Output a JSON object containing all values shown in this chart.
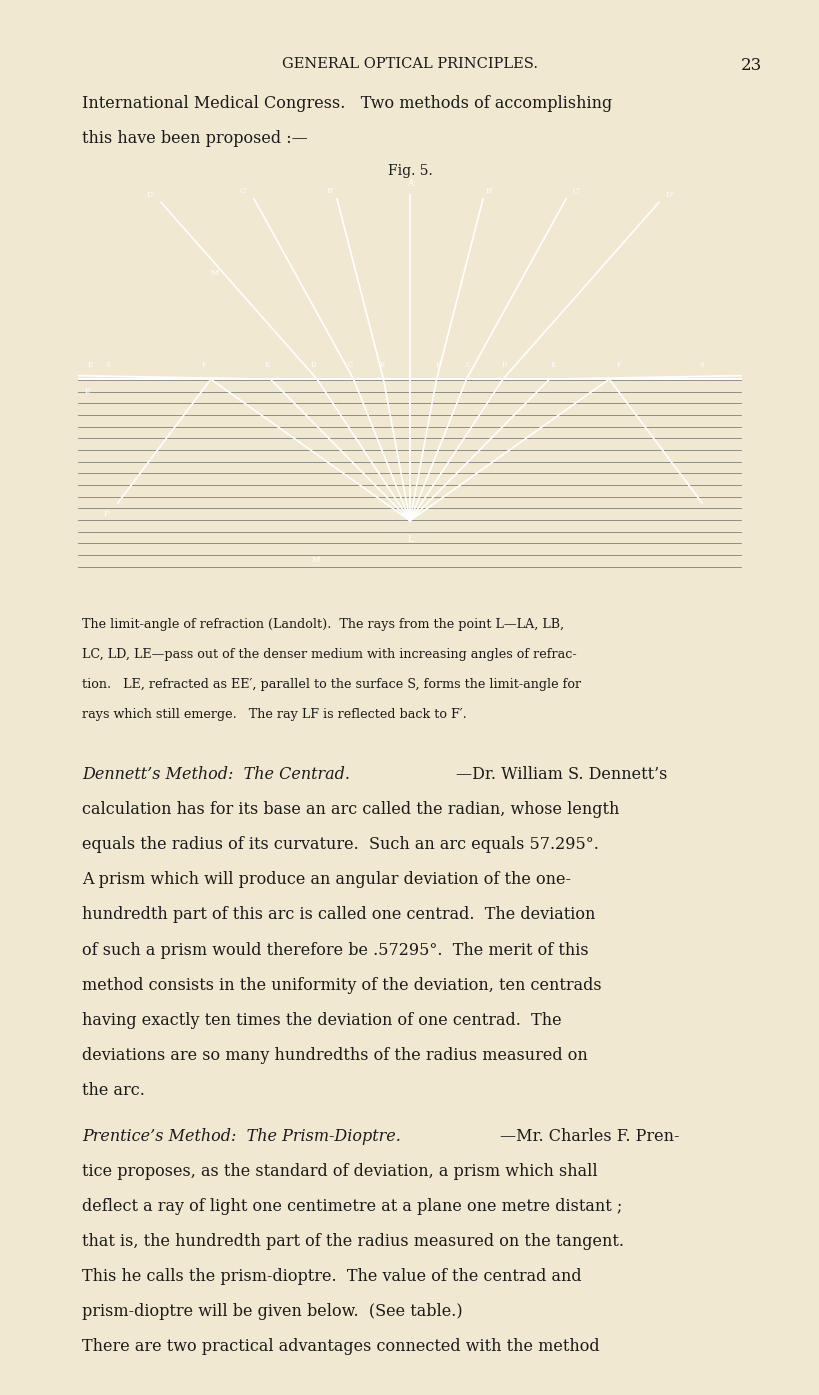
{
  "page_bg": "#f0e8d0",
  "header_text": "GENERAL OPTICAL PRINCIPLES.",
  "page_number": "23",
  "intro_line1": "International Medical Congress.   Two methods of accomplishing",
  "intro_line2": "this have been proposed :—",
  "fig_label": "Fig. 5.",
  "diagram_bg": "#080808",
  "cap_line1": "The limit-angle of refraction (Landolt).  The rays from the point L—LA, LB,",
  "cap_line2": "LC, LD, LE—pass out of the denser medium with increasing angles of refrac-",
  "cap_line3": "tion.   LE, refracted as EE′, parallel to the surface S, forms the limit-angle for",
  "cap_line4": "rays which still emerge.   The ray LF is reflected back to F′.",
  "dennett_heading": "Dennett’s Method:  The Centrad.",
  "dennett_line0_tail": "—Dr. William S. Dennett’s",
  "dennett_lines": [
    "calculation has for its base an arc called the radian, whose length",
    "equals the radius of its curvature.  Such an arc equals 57.295°.",
    "A prism which will produce an angular deviation of the one-",
    "hundredth part of this arc is called one centrad.  The deviation",
    "of such a prism would therefore be .57295°.  The merit of this",
    "method consists in the uniformity of the deviation, ten centrads",
    "having exactly ten times the deviation of one centrad.  The",
    "deviations are so many hundredths of the radius measured on",
    "the arc."
  ],
  "prentice_heading": "Prentice’s Method:  The Prism-Dioptre.",
  "prentice_line0_tail": "—Mr. Charles F. Pren-",
  "prentice_lines": [
    "tice proposes, as the standard of deviation, a prism which shall",
    "deflect a ray of light one centimetre at a plane one metre distant ;",
    "that is, the hundredth part of the radius measured on the tangent.",
    "This he calls the prism-dioptre.  The value of the centrad and",
    "prism-dioptre will be given below.  (See table.)"
  ],
  "final_line": "There are two practical advantages connected with the method",
  "text_color": "#1a1a1a",
  "white": "#ffffff",
  "gray_lines": "#606060",
  "lh": 0.0255,
  "cap_lh": 0.022,
  "body_fontsize": 11.5,
  "cap_fontsize": 9.2,
  "header_fontsize": 10.5,
  "page_num_fontsize": 12,
  "fig_fontsize": 10
}
